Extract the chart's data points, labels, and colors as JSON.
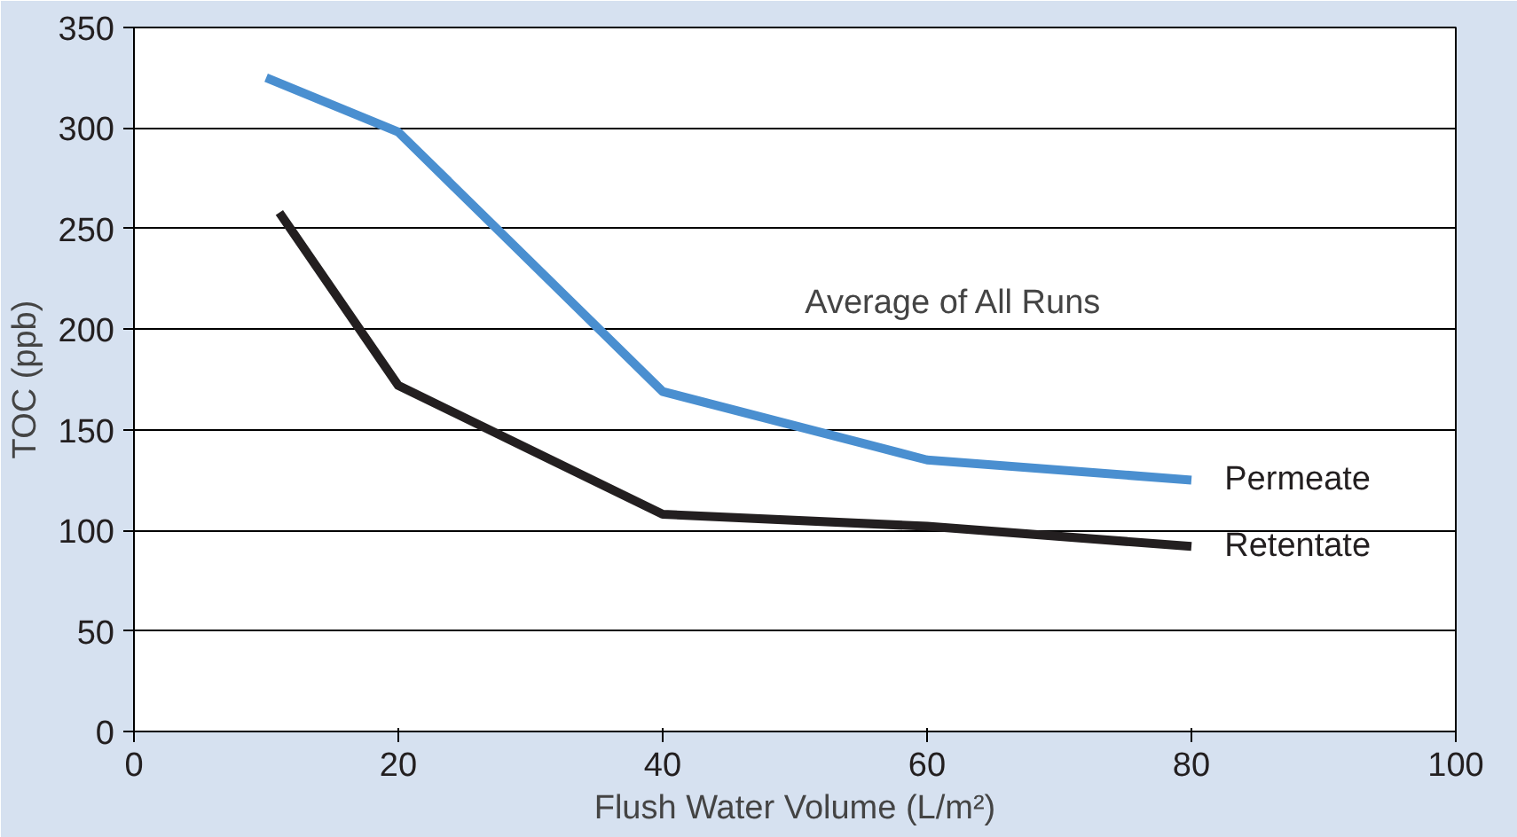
{
  "chart_data": {
    "type": "line",
    "xlabel": "Flush Water Volume (L/m²)",
    "ylabel": "TOC (ppb)",
    "xlim": [
      0,
      100
    ],
    "xticks": [
      0,
      20,
      40,
      60,
      80,
      100
    ],
    "ylim": [
      0,
      350
    ],
    "yticks": [
      0,
      50,
      100,
      150,
      200,
      250,
      300,
      350
    ],
    "grid": "y",
    "legend": false,
    "marker": "none",
    "line_style": "solid",
    "annotations": [
      "Average of All Runs"
    ],
    "series": [
      {
        "name": "Permeate",
        "color": "#4a8fd0",
        "x": [
          10,
          20,
          40,
          60,
          80
        ],
        "values": [
          325,
          298,
          169,
          135,
          125
        ]
      },
      {
        "name": "Retentate",
        "color": "#231f20",
        "x": [
          11,
          20,
          40,
          60,
          80
        ],
        "values": [
          258,
          172,
          108,
          102,
          92
        ]
      }
    ]
  }
}
